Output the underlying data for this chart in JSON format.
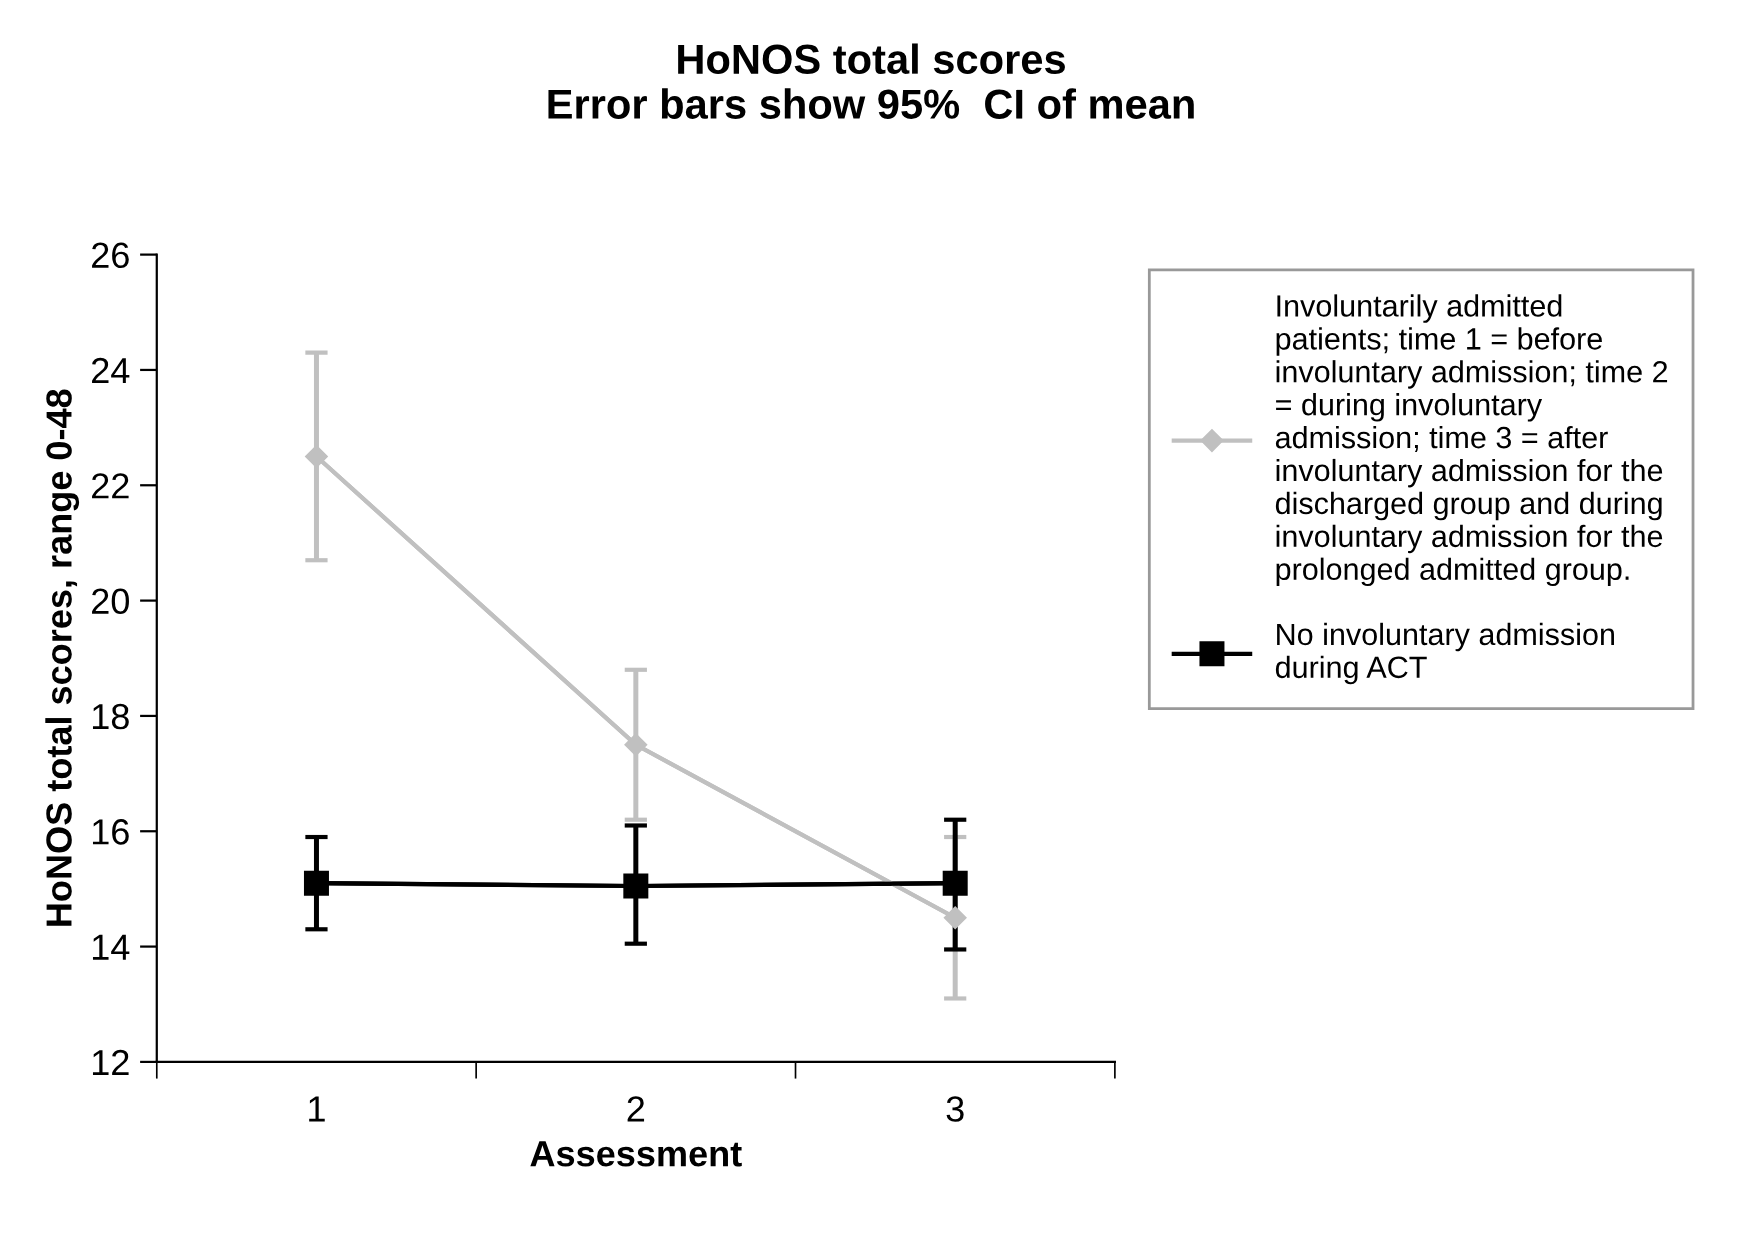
{
  "chart_data": {
    "type": "line",
    "title": "HoNOS total scores\nError bars show 95%  CI of mean",
    "xlabel": "Assessment",
    "ylabel": "HoNOS total scores, range 0-48",
    "categories": [
      "1",
      "2",
      "3"
    ],
    "ylim": [
      12,
      26
    ],
    "yticks": [
      12,
      14,
      16,
      18,
      20,
      22,
      24,
      26
    ],
    "legend": "right",
    "grid": false,
    "series": [
      {
        "name": "Involuntarily admitted\npatients; time 1 = before\ninvoluntary admission; time 2\n= during involuntary\nadmission; time 3 = after\ninvoluntary admission for the\ndischarged group and during\ninvoluntary admission for the\nprolonged admitted group.",
        "color": "#c0c0c0",
        "marker": "diamond",
        "values": [
          22.5,
          17.5,
          14.5
        ],
        "errors": [
          [
            20.7,
            24.3
          ],
          [
            16.2,
            18.8
          ],
          [
            13.1,
            15.9
          ]
        ]
      },
      {
        "name": "No involuntary admission\nduring ACT",
        "color": "#000000",
        "marker": "square",
        "values": [
          15.1,
          15.05,
          15.1
        ],
        "errors": [
          [
            14.3,
            15.9
          ],
          [
            14.05,
            16.1
          ],
          [
            13.95,
            16.2
          ]
        ]
      }
    ]
  }
}
